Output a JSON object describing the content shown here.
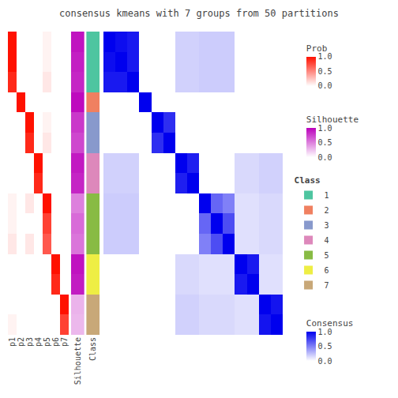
{
  "chart_data": {
    "type": "heatmap",
    "title": "consensus kmeans with 7 groups from 50 partitions",
    "grid": false,
    "tick_labels": "x",
    "prob": {
      "categories": [
        "p1",
        "p2",
        "p3",
        "p4",
        "p5",
        "p6",
        "p7"
      ],
      "values": [
        [
          1.0,
          0.0,
          0.0,
          0.0,
          0.05,
          0.0,
          0.0
        ],
        [
          1.0,
          0.0,
          0.0,
          0.0,
          0.05,
          0.0,
          0.0
        ],
        [
          0.9,
          0.0,
          0.0,
          0.0,
          0.1,
          0.0,
          0.0
        ],
        [
          0.0,
          1.0,
          0.0,
          0.0,
          0.0,
          0.0,
          0.0
        ],
        [
          0.0,
          0.0,
          1.0,
          0.0,
          0.05,
          0.0,
          0.0
        ],
        [
          0.0,
          0.0,
          0.9,
          0.0,
          0.1,
          0.0,
          0.0
        ],
        [
          0.0,
          0.0,
          0.0,
          1.0,
          0.0,
          0.0,
          0.0
        ],
        [
          0.0,
          0.0,
          0.0,
          0.9,
          0.0,
          0.0,
          0.0
        ],
        [
          0.05,
          0.0,
          0.1,
          0.0,
          1.0,
          0.0,
          0.0
        ],
        [
          0.05,
          0.0,
          0.0,
          0.0,
          0.8,
          0.0,
          0.0
        ],
        [
          0.1,
          0.0,
          0.1,
          0.0,
          0.7,
          0.0,
          0.0
        ],
        [
          0.0,
          0.0,
          0.0,
          0.0,
          0.0,
          1.0,
          0.0
        ],
        [
          0.0,
          0.0,
          0.0,
          0.0,
          0.0,
          0.9,
          0.0
        ],
        [
          0.0,
          0.0,
          0.0,
          0.0,
          0.0,
          0.0,
          1.0
        ],
        [
          0.05,
          0.0,
          0.0,
          0.0,
          0.0,
          0.0,
          0.8
        ]
      ],
      "colorscale": [
        "#FFFFFF",
        "#FF1100"
      ],
      "colorbar": {
        "title": "Prob",
        "range": [
          0,
          1
        ],
        "ticks": [
          {
            "value": 0,
            "label": "0.0"
          },
          0.5,
          {
            "value": 1,
            "label": "1.0"
          }
        ]
      }
    },
    "silhouette": {
      "categories": [
        "Silhouette"
      ],
      "values": [
        0.92,
        0.88,
        0.85,
        0.96,
        0.78,
        0.72,
        0.9,
        0.86,
        0.5,
        0.58,
        0.54,
        0.93,
        0.89,
        0.3,
        0.28
      ],
      "colorscale": [
        "#FFFFFF",
        "#BB00BB"
      ],
      "colorbar": {
        "title": "Silhouette",
        "range": [
          0,
          1
        ],
        "ticks": [
          {
            "value": 0,
            "label": "0.0"
          },
          0.5,
          {
            "value": 1,
            "label": "1.0"
          }
        ]
      }
    },
    "class": {
      "categories": [
        "Class"
      ],
      "values": [
        1,
        1,
        1,
        2,
        3,
        3,
        4,
        4,
        5,
        5,
        5,
        6,
        6,
        7,
        7
      ],
      "colors": [
        "#4EC5A0",
        "#F08060",
        "#8899CC",
        "#DD88BB",
        "#88BB44",
        "#EEEE44",
        "#C8A878"
      ],
      "legend_title": "Class",
      "legend_labels": [
        "1",
        "2",
        "3",
        "4",
        "5",
        "6",
        "7"
      ]
    },
    "consensus": {
      "values": [
        [
          1.0,
          0.95,
          0.9,
          0.0,
          0.0,
          0.0,
          0.18,
          0.18,
          0.2,
          0.2,
          0.2,
          0.0,
          0.0,
          0.0,
          0.0
        ],
        [
          0.95,
          1.0,
          0.9,
          0.0,
          0.0,
          0.0,
          0.18,
          0.18,
          0.2,
          0.2,
          0.2,
          0.0,
          0.0,
          0.0,
          0.0
        ],
        [
          0.9,
          0.9,
          1.0,
          0.0,
          0.0,
          0.0,
          0.18,
          0.18,
          0.2,
          0.2,
          0.2,
          0.0,
          0.0,
          0.0,
          0.0
        ],
        [
          0.0,
          0.0,
          0.0,
          1.0,
          0.0,
          0.0,
          0.0,
          0.0,
          0.0,
          0.0,
          0.0,
          0.0,
          0.0,
          0.0,
          0.0
        ],
        [
          0.0,
          0.0,
          0.0,
          0.0,
          1.0,
          0.82,
          0.0,
          0.0,
          0.0,
          0.0,
          0.0,
          0.0,
          0.0,
          0.0,
          0.0
        ],
        [
          0.0,
          0.0,
          0.0,
          0.0,
          0.82,
          1.0,
          0.0,
          0.0,
          0.0,
          0.0,
          0.0,
          0.0,
          0.0,
          0.0,
          0.0
        ],
        [
          0.18,
          0.18,
          0.18,
          0.0,
          0.0,
          0.0,
          1.0,
          0.88,
          0.0,
          0.0,
          0.0,
          0.15,
          0.15,
          0.18,
          0.18
        ],
        [
          0.18,
          0.18,
          0.18,
          0.0,
          0.0,
          0.0,
          0.88,
          1.0,
          0.0,
          0.0,
          0.0,
          0.15,
          0.15,
          0.18,
          0.18
        ],
        [
          0.2,
          0.2,
          0.2,
          0.0,
          0.0,
          0.0,
          0.0,
          0.0,
          1.0,
          0.6,
          0.5,
          0.12,
          0.12,
          0.15,
          0.15
        ],
        [
          0.2,
          0.2,
          0.2,
          0.0,
          0.0,
          0.0,
          0.0,
          0.0,
          0.6,
          1.0,
          0.7,
          0.12,
          0.12,
          0.15,
          0.15
        ],
        [
          0.2,
          0.2,
          0.2,
          0.0,
          0.0,
          0.0,
          0.0,
          0.0,
          0.5,
          0.7,
          1.0,
          0.12,
          0.12,
          0.15,
          0.15
        ],
        [
          0.0,
          0.0,
          0.0,
          0.0,
          0.0,
          0.0,
          0.15,
          0.15,
          0.12,
          0.12,
          0.12,
          1.0,
          0.9,
          0.12,
          0.12
        ],
        [
          0.0,
          0.0,
          0.0,
          0.0,
          0.0,
          0.0,
          0.15,
          0.15,
          0.12,
          0.12,
          0.12,
          0.9,
          1.0,
          0.12,
          0.12
        ],
        [
          0.0,
          0.0,
          0.0,
          0.0,
          0.0,
          0.0,
          0.18,
          0.18,
          0.15,
          0.15,
          0.15,
          0.12,
          0.12,
          1.0,
          0.92
        ],
        [
          0.0,
          0.0,
          0.0,
          0.0,
          0.0,
          0.0,
          0.18,
          0.18,
          0.15,
          0.15,
          0.15,
          0.12,
          0.12,
          0.92,
          1.0
        ]
      ],
      "colorscale": [
        "#FFFFFF",
        "#0000EE"
      ],
      "colorbar": {
        "title": "Consensus",
        "range": [
          0,
          1
        ],
        "ticks": [
          {
            "value": 0,
            "label": "0.0"
          },
          0.5,
          {
            "value": 1,
            "label": "1.0"
          }
        ]
      }
    }
  }
}
